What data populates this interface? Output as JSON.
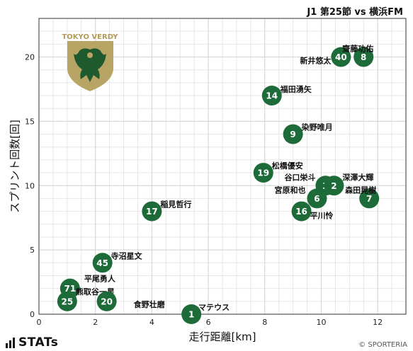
{
  "header": {
    "title": "J1 第25節 vs 横浜FM"
  },
  "branding": {
    "stats_logo_text": "STATs",
    "credit": "© SPORTERIA",
    "team_emblem_text": "TOKYO VERDY"
  },
  "colors": {
    "marker": "#1e6b3a",
    "marker_text": "#ffffff",
    "grid": "#d4d4d4"
  },
  "chart_data": {
    "type": "scatter",
    "title": "J1 第25節 vs 横浜FM",
    "xlabel": "走行距離[km]",
    "ylabel": "スプリント回数[回]",
    "xlim": [
      0,
      13
    ],
    "ylim": [
      0,
      23
    ],
    "xticks": [
      0,
      2,
      4,
      6,
      8,
      10,
      12
    ],
    "yticks": [
      0,
      5,
      10,
      15,
      20
    ],
    "grid": true,
    "points": [
      {
        "number": "40",
        "name": "新井悠太",
        "x": 10.7,
        "y": 20
      },
      {
        "number": "8",
        "name": "齋藤功佑",
        "x": 11.5,
        "y": 20
      },
      {
        "number": "14",
        "name": "福田湧矢",
        "x": 8.25,
        "y": 17
      },
      {
        "number": "9",
        "name": "染野唯月",
        "x": 9.0,
        "y": 14
      },
      {
        "number": "19",
        "name": "松橋優安",
        "x": 7.95,
        "y": 11
      },
      {
        "number": "3",
        "name": "谷口栄斗",
        "x": 10.15,
        "y": 10
      },
      {
        "number": "2",
        "name": "深澤大輝",
        "x": 10.45,
        "y": 10
      },
      {
        "number": "6",
        "name": "宮原和也",
        "x": 9.85,
        "y": 9
      },
      {
        "number": "7",
        "name": "森田晃樹",
        "x": 11.7,
        "y": 9
      },
      {
        "number": "16",
        "name": "平川怜",
        "x": 9.3,
        "y": 8
      },
      {
        "number": "17",
        "name": "稲見哲行",
        "x": 4.0,
        "y": 8
      },
      {
        "number": "45",
        "name": "寺沼星文",
        "x": 2.25,
        "y": 4
      },
      {
        "number": "71",
        "name": "平尾勇人",
        "x": 1.1,
        "y": 2
      },
      {
        "number": "25",
        "name": "熊取谷一星",
        "x": 1.0,
        "y": 1
      },
      {
        "number": "20",
        "name": "食野壮磨",
        "x": 2.4,
        "y": 1
      },
      {
        "number": "1",
        "name": "マテウス",
        "x": 5.4,
        "y": 0
      }
    ]
  }
}
